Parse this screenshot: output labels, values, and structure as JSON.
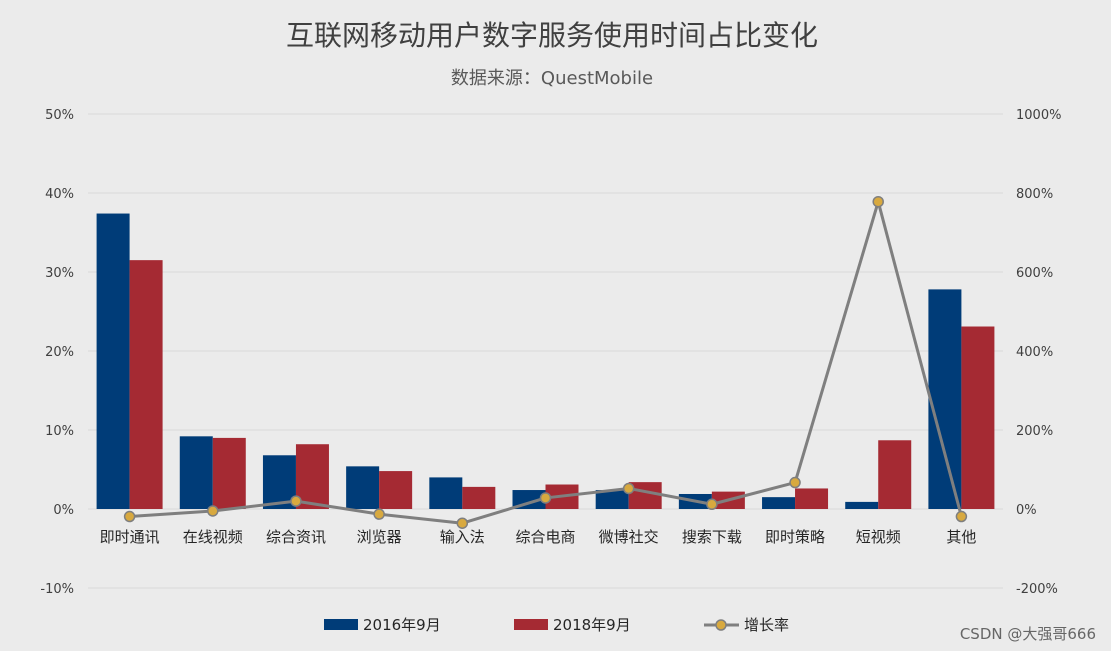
{
  "chart_data": {
    "type": "bar",
    "title": "互联网移动用户数字服务使用时间占比变化",
    "subtitle": "数据来源：QuestMobile",
    "categories": [
      "即时通讯",
      "在线视频",
      "综合资讯",
      "浏览器",
      "输入法",
      "综合电商",
      "微博社交",
      "搜索下载",
      "即时策略",
      "短视频",
      "其他"
    ],
    "series": [
      {
        "name": "2016年9月",
        "kind": "bar",
        "axis": "left",
        "color": "#003c78",
        "values": [
          37.4,
          9.2,
          6.8,
          5.4,
          4.0,
          2.4,
          2.4,
          1.9,
          1.5,
          0.9,
          27.8
        ]
      },
      {
        "name": "2018年9月",
        "kind": "bar",
        "axis": "left",
        "color": "#a52a33",
        "values": [
          31.5,
          9.0,
          8.2,
          4.8,
          2.8,
          3.1,
          3.4,
          2.2,
          2.6,
          8.7,
          23.1
        ]
      },
      {
        "name": "增长率",
        "kind": "line",
        "axis": "right",
        "color": "#7f7f7f",
        "marker_color": "#d8a93f",
        "values": [
          -19,
          -5,
          20,
          -13,
          -36,
          28,
          52,
          12,
          67,
          778,
          -19
        ]
      }
    ],
    "left_axis": {
      "ylim": [
        -10,
        50
      ],
      "ticks": [
        -10,
        0,
        10,
        20,
        30,
        40,
        50
      ],
      "tick_labels": [
        "-10%",
        "0%",
        "10%",
        "20%",
        "30%",
        "40%",
        "50%"
      ]
    },
    "right_axis": {
      "ylim": [
        -200,
        1000
      ],
      "ticks": [
        -200,
        0,
        200,
        400,
        600,
        800,
        1000
      ],
      "tick_labels": [
        "-200%",
        "0%",
        "200%",
        "400%",
        "600%",
        "800%",
        "1000%"
      ]
    },
    "grid": true,
    "legend_position": "bottom"
  },
  "watermark": "CSDN @大强哥666"
}
